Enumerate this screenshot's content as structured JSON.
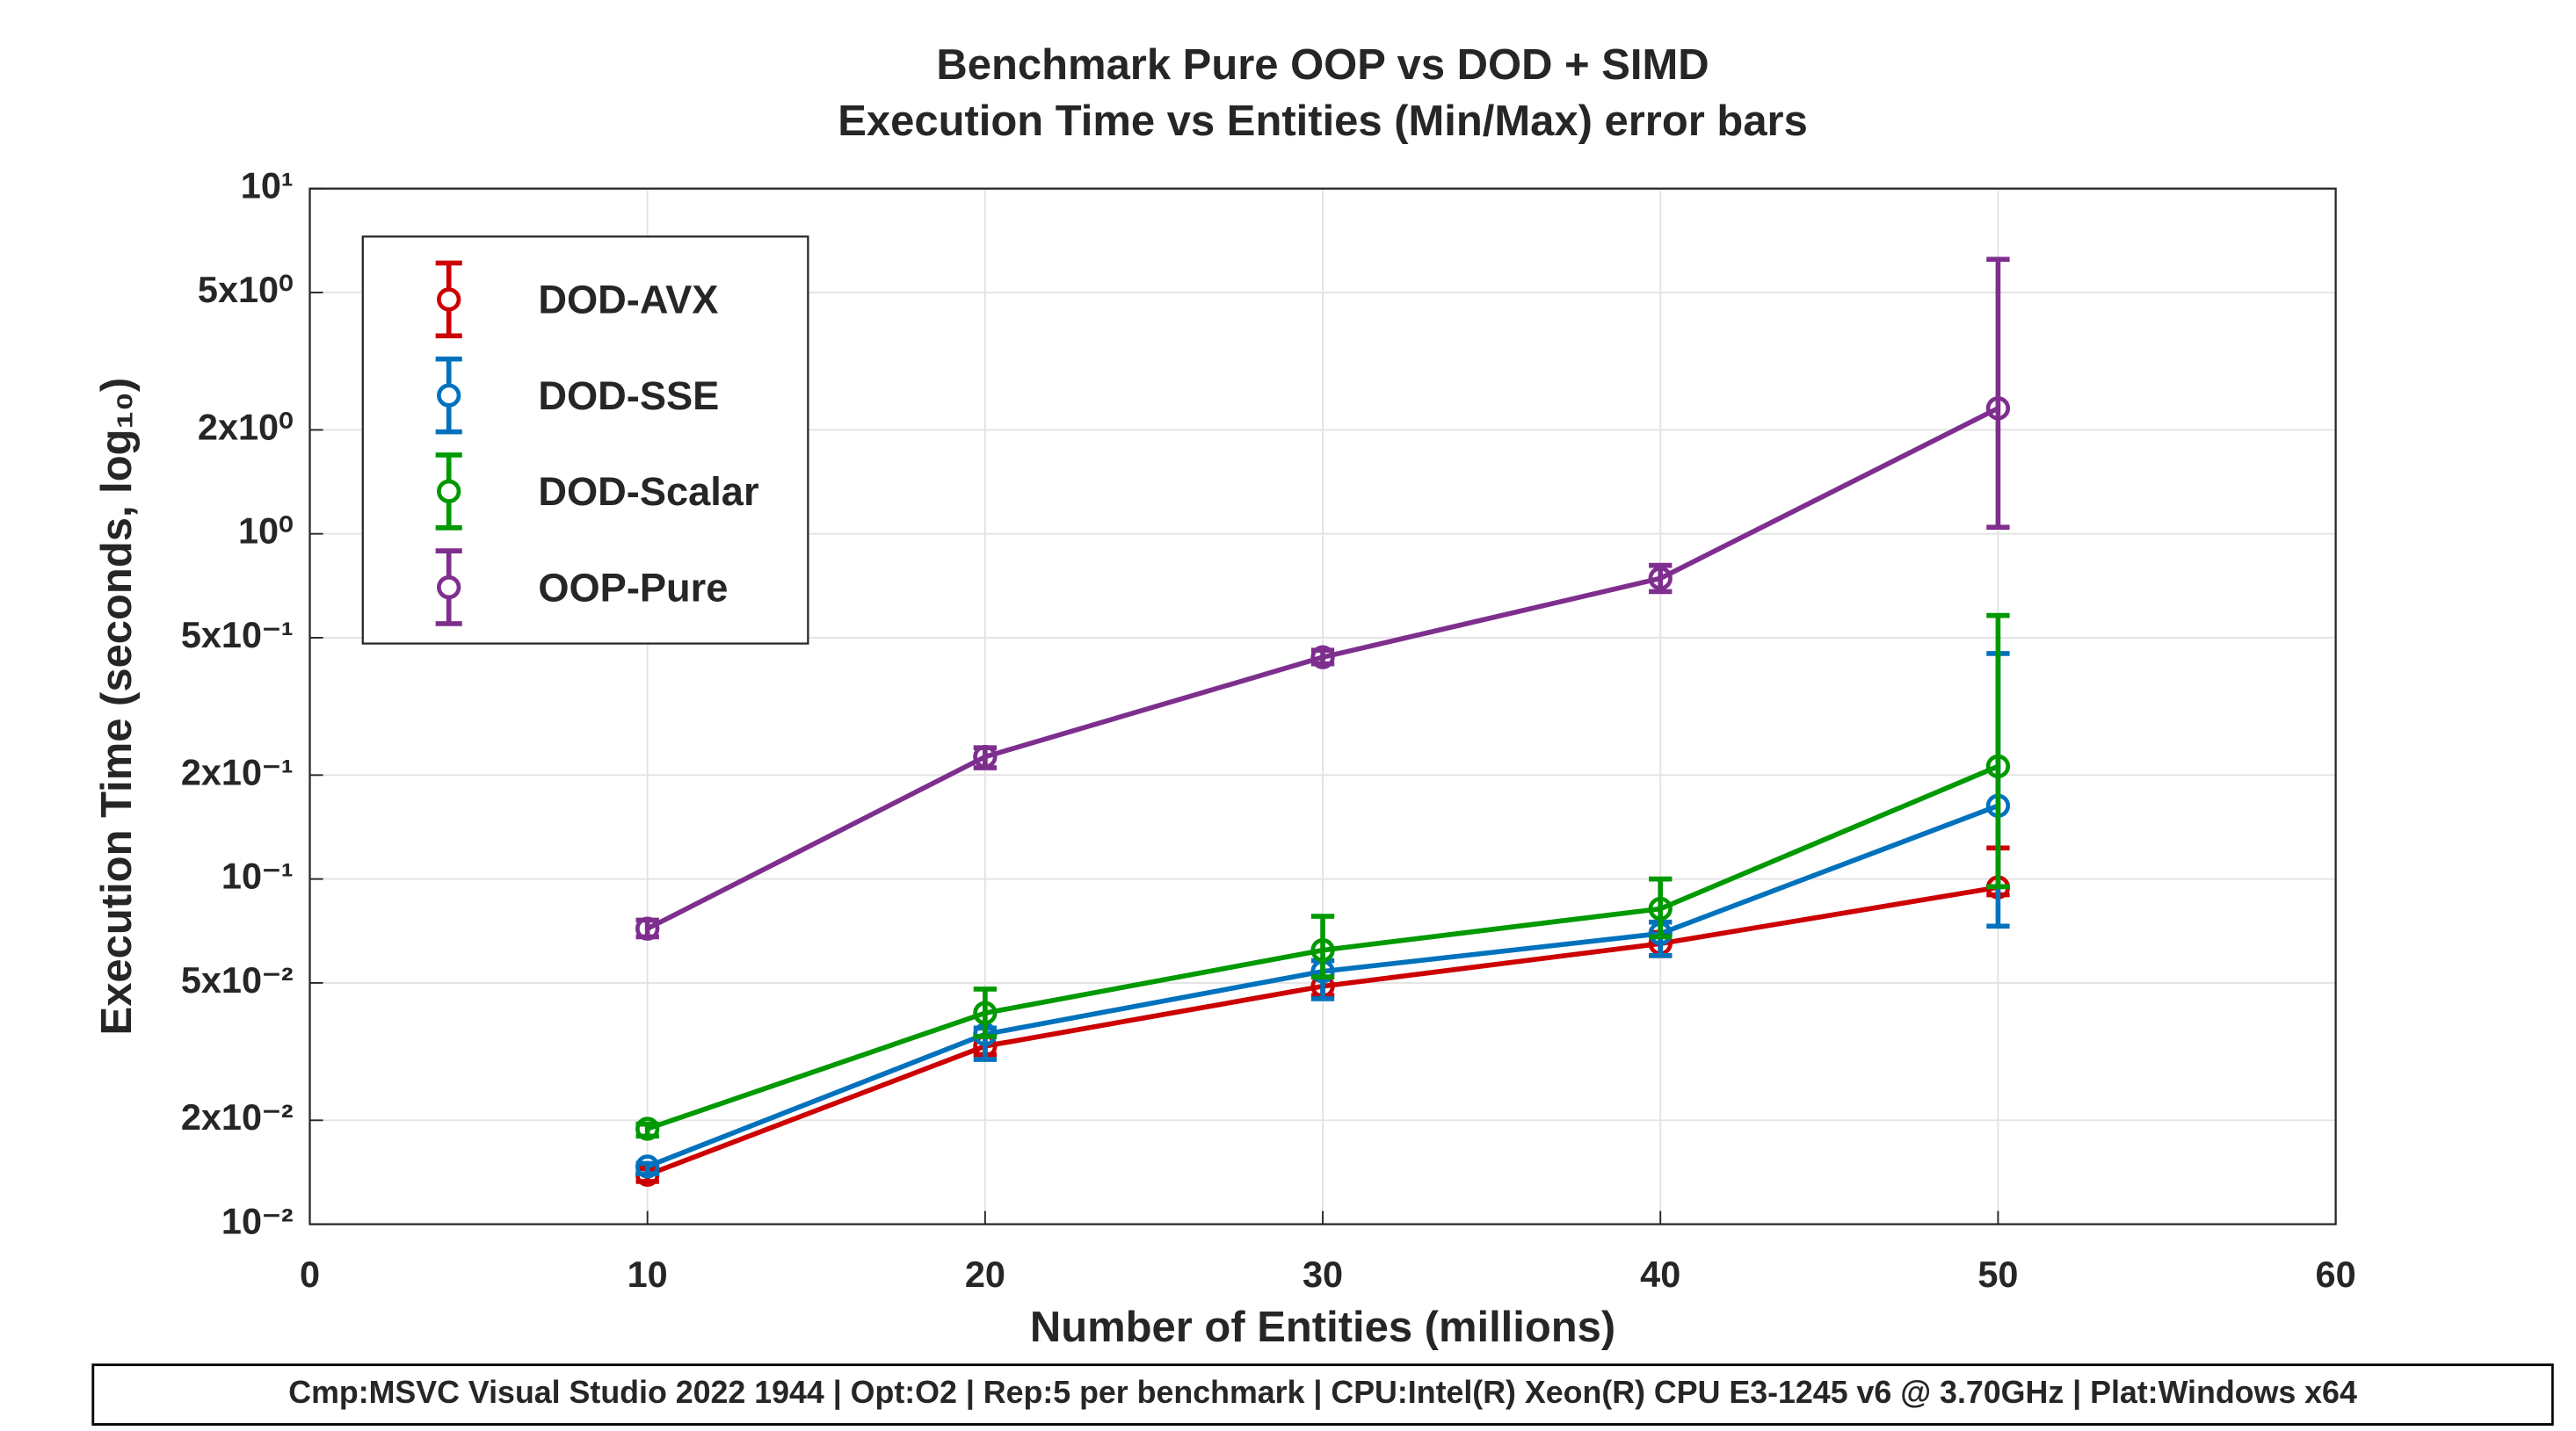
{
  "chart_data": {
    "type": "errorbar_line",
    "title": "Benchmark Pure OOP vs DOD + SIMD",
    "subtitle": "Execution Time vs Entities (Min/Max) error bars",
    "xlabel": "Number of Entities (millions)",
    "ylabel": "Execution Time (seconds, log₁₀)",
    "footer": "Cmp:MSVC Visual Studio 2022 1944 | Opt:O2 | Rep:5 per benchmark | CPU:Intel(R) Xeon(R) CPU E3-1245 v6 @ 3.70GHz | Plat:Windows x64",
    "x": [
      10,
      20,
      30,
      40,
      50
    ],
    "xlim": [
      0,
      60
    ],
    "xticks": [
      0,
      10,
      20,
      30,
      40,
      50,
      60
    ],
    "ylim": [
      0.01,
      10
    ],
    "yscale": "log",
    "yticks": [
      {
        "value": 10,
        "label": "10¹"
      },
      {
        "value": 5,
        "label": "5x10⁰"
      },
      {
        "value": 2,
        "label": "2x10⁰"
      },
      {
        "value": 1,
        "label": "10⁰"
      },
      {
        "value": 0.5,
        "label": "5x10⁻¹"
      },
      {
        "value": 0.2,
        "label": "2x10⁻¹"
      },
      {
        "value": 0.1,
        "label": "10⁻¹"
      },
      {
        "value": 0.05,
        "label": "5x10⁻²"
      },
      {
        "value": 0.02,
        "label": "2x10⁻²"
      },
      {
        "value": 0.01,
        "label": "10⁻²"
      }
    ],
    "grid": true,
    "legend": "upper-left",
    "series": [
      {
        "name": "DOD-AVX",
        "color": "#cc0000",
        "values": [
          0.0139,
          0.0328,
          0.0489,
          0.065,
          0.0946
        ],
        "min": [
          0.0133,
          0.031,
          0.046,
          0.06,
          0.09
        ],
        "max": [
          0.0145,
          0.035,
          0.052,
          0.07,
          0.123
        ]
      },
      {
        "name": "DOD-SSE",
        "color": "#0072bd",
        "values": [
          0.0147,
          0.0355,
          0.054,
          0.0695,
          0.163
        ],
        "min": [
          0.014,
          0.03,
          0.045,
          0.06,
          0.073
        ],
        "max": [
          0.015,
          0.037,
          0.058,
          0.075,
          0.45
        ]
      },
      {
        "name": "DOD-Scalar",
        "color": "#009900",
        "values": [
          0.0189,
          0.0409,
          0.0622,
          0.082,
          0.212
        ],
        "min": [
          0.018,
          0.035,
          0.052,
          0.068,
          0.095
        ],
        "max": [
          0.0195,
          0.048,
          0.078,
          0.1,
          0.58
        ]
      },
      {
        "name": "OOP-Pure",
        "color": "#7e2f8e",
        "values": [
          0.0718,
          0.226,
          0.439,
          0.743,
          2.31
        ],
        "min": [
          0.068,
          0.21,
          0.42,
          0.68,
          1.045
        ],
        "max": [
          0.076,
          0.24,
          0.46,
          0.81,
          6.24
        ]
      }
    ]
  }
}
